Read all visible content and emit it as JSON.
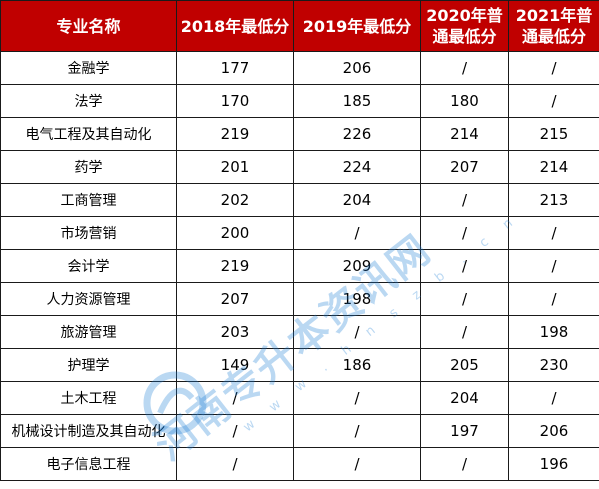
{
  "table": {
    "headers": [
      "专业名称",
      "2018年最低分",
      "2019年最低分",
      "2020年普\n通最低分",
      "2021年普\n通最低分"
    ],
    "rows": [
      [
        "金融学",
        "177",
        "206",
        "/",
        "/"
      ],
      [
        "法学",
        "170",
        "185",
        "180",
        "/"
      ],
      [
        "电气工程及其自动化",
        "219",
        "226",
        "214",
        "215"
      ],
      [
        "药学",
        "201",
        "224",
        "207",
        "214"
      ],
      [
        "工商管理",
        "202",
        "204",
        "/",
        "213"
      ],
      [
        "市场营销",
        "200",
        "/",
        "/",
        "/"
      ],
      [
        "会计学",
        "219",
        "209",
        "/",
        "/"
      ],
      [
        "人力资源管理",
        "207",
        "198",
        "/",
        "/"
      ],
      [
        "旅游管理",
        "203",
        "/",
        "/",
        "198"
      ],
      [
        "护理学",
        "149",
        "186",
        "205",
        "230"
      ],
      [
        "土木工程",
        "/",
        "/",
        "204",
        "/"
      ],
      [
        "机械设计制造及其自动化",
        "/",
        "/",
        "197",
        "206"
      ],
      [
        "电子信息工程",
        "/",
        "/",
        "/",
        "196"
      ]
    ]
  },
  "watermark": {
    "text": "河南专升本资讯网",
    "url": "w w w . h n s z b . c n",
    "color": "#1f7fd6"
  },
  "colors": {
    "header_bg": "#c00000",
    "header_text": "#ffffff",
    "border": "#1a1a1a"
  }
}
